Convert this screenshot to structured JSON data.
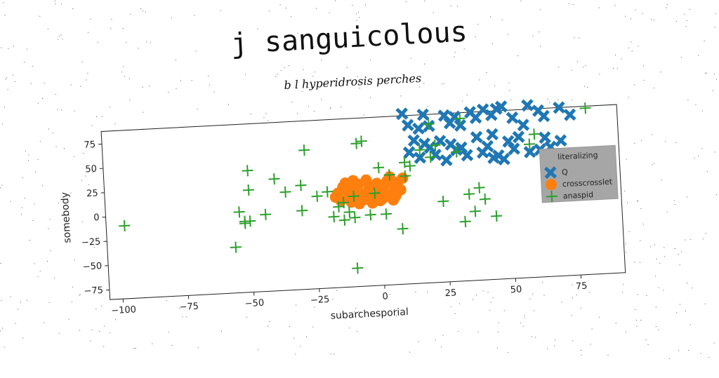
{
  "chart_data": {
    "type": "scatter",
    "title": "j sanguicolous",
    "subtitle": "b l hyperidrosis perches",
    "xlabel": "subarchesporial",
    "ylabel": "somebody",
    "xlim": [
      -105,
      92
    ],
    "ylim": [
      -85,
      88
    ],
    "xticks": [
      -100,
      -75,
      -50,
      -25,
      0,
      25,
      50,
      75
    ],
    "yticks": [
      -75,
      -50,
      -25,
      0,
      25,
      50,
      75
    ],
    "xtick_labels": [
      "−100",
      "−75",
      "−50",
      "−25",
      "0",
      "25",
      "50",
      "75"
    ],
    "ytick_labels": [
      "−75",
      "−50",
      "−25",
      "0",
      "25",
      "50",
      "75"
    ],
    "grid": false,
    "legend": {
      "title": "literalizing",
      "placement": "right"
    },
    "series": [
      {
        "name": "Q",
        "marker": "x-thick",
        "color": "#1f77b4",
        "points": [
          [
            10,
            90
          ],
          [
            18,
            88
          ],
          [
            26,
            86
          ],
          [
            30,
            84
          ],
          [
            36,
            88
          ],
          [
            41,
            90
          ],
          [
            46,
            90
          ],
          [
            48,
            92
          ],
          [
            58,
            92
          ],
          [
            62,
            86
          ],
          [
            70,
            88
          ],
          [
            74,
            80
          ],
          [
            12,
            78
          ],
          [
            16,
            74
          ],
          [
            20,
            76
          ],
          [
            28,
            78
          ],
          [
            32,
            75
          ],
          [
            38,
            82
          ],
          [
            44,
            84
          ],
          [
            52,
            80
          ],
          [
            64,
            80
          ],
          [
            56,
            72
          ],
          [
            14,
            62
          ],
          [
            18,
            58
          ],
          [
            24,
            60
          ],
          [
            28,
            56
          ],
          [
            38,
            62
          ],
          [
            44,
            64
          ],
          [
            50,
            56
          ],
          [
            54,
            60
          ],
          [
            64,
            58
          ],
          [
            70,
            54
          ],
          [
            16,
            44
          ],
          [
            22,
            46
          ],
          [
            30,
            50
          ],
          [
            34,
            44
          ],
          [
            40,
            46
          ],
          [
            46,
            42
          ],
          [
            52,
            48
          ],
          [
            58,
            44
          ],
          [
            62,
            46
          ],
          [
            48,
            38
          ],
          [
            20,
            54
          ],
          [
            26,
            40
          ],
          [
            32,
            52
          ],
          [
            42,
            52
          ],
          [
            44,
            40
          ],
          [
            12,
            50
          ],
          [
            66,
            48
          ]
        ]
      },
      {
        "name": "crosscrosslet",
        "marker": "circle",
        "color": "#ff7f0e",
        "points": [
          [
            -16,
            12
          ],
          [
            -14,
            18
          ],
          [
            -12,
            8
          ],
          [
            -10,
            14
          ],
          [
            -8,
            20
          ],
          [
            -6,
            10
          ],
          [
            -4,
            16
          ],
          [
            -2,
            6
          ],
          [
            0,
            12
          ],
          [
            2,
            18
          ],
          [
            4,
            8
          ],
          [
            6,
            14
          ],
          [
            -15,
            4
          ],
          [
            -11,
            2
          ],
          [
            -7,
            6
          ],
          [
            -3,
            0
          ],
          [
            1,
            4
          ],
          [
            5,
            2
          ],
          [
            -13,
            22
          ],
          [
            -5,
            24
          ],
          [
            3,
            22
          ],
          [
            7,
            20
          ],
          [
            8,
            12
          ],
          [
            -9,
            10
          ],
          [
            -1,
            20
          ],
          [
            -17,
            8
          ],
          [
            -8,
            0
          ],
          [
            4,
            26
          ],
          [
            9,
            24
          ],
          [
            0,
            2
          ],
          [
            -12,
            14
          ],
          [
            -6,
            4
          ],
          [
            2,
            10
          ],
          [
            -10,
            24
          ],
          [
            6,
            6
          ]
        ]
      },
      {
        "name": "anaspid",
        "marker": "plus",
        "color": "#2ca02c",
        "points": [
          [
            -98,
            -10
          ],
          [
            -56,
            -38
          ],
          [
            -54,
            -2
          ],
          [
            -52,
            -14
          ],
          [
            -52,
            -12
          ],
          [
            -50,
            -12
          ],
          [
            -50,
            20
          ],
          [
            -50,
            40
          ],
          [
            -40,
            30
          ],
          [
            -36,
            16
          ],
          [
            -30,
            -4
          ],
          [
            -30,
            22
          ],
          [
            -28,
            58
          ],
          [
            -24,
            10
          ],
          [
            -20,
            14
          ],
          [
            -18,
            -12
          ],
          [
            -16,
            -2
          ],
          [
            -14,
            -16
          ],
          [
            -14,
            2
          ],
          [
            -12,
            -8
          ],
          [
            -10,
            -14
          ],
          [
            -10,
            8
          ],
          [
            -10,
            -66
          ],
          [
            -8,
            62
          ],
          [
            -6,
            64
          ],
          [
            -4,
            -12
          ],
          [
            -2,
            10
          ],
          [
            0,
            36
          ],
          [
            2,
            -12
          ],
          [
            4,
            28
          ],
          [
            8,
            -28
          ],
          [
            10,
            26
          ],
          [
            10,
            40
          ],
          [
            16,
            52
          ],
          [
            20,
            44
          ],
          [
            20,
            78
          ],
          [
            24,
            -2
          ],
          [
            32,
            -24
          ],
          [
            32,
            82
          ],
          [
            34,
            4
          ],
          [
            36,
            -14
          ],
          [
            38,
            10
          ],
          [
            40,
            -2
          ],
          [
            44,
            -20
          ],
          [
            58,
            52
          ],
          [
            60,
            62
          ],
          [
            66,
            40
          ],
          [
            80,
            86
          ],
          [
            30,
            48
          ],
          [
            12,
            36
          ],
          [
            -44,
            -6
          ],
          [
            22,
            56
          ]
        ]
      }
    ]
  }
}
